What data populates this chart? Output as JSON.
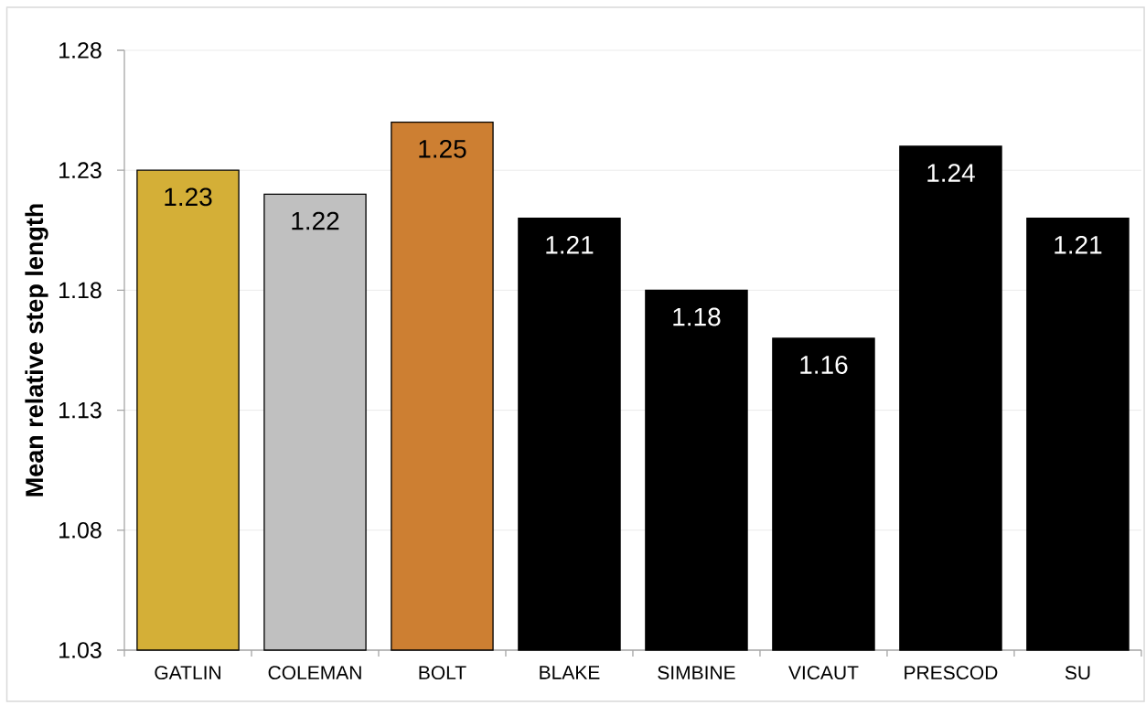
{
  "chart_data": {
    "type": "bar",
    "ylabel": "Mean relative step length",
    "categories": [
      "GATLIN",
      "COLEMAN",
      "BOLT",
      "BLAKE",
      "SIMBINE",
      "VICAUT",
      "PRESCOD",
      "SU"
    ],
    "values": [
      1.23,
      1.22,
      1.25,
      1.21,
      1.18,
      1.16,
      1.24,
      1.21
    ],
    "colors": [
      "#d4af37",
      "#c0c0c0",
      "#cd7f32",
      "#000000",
      "#000000",
      "#000000",
      "#000000",
      "#000000"
    ],
    "ylim": [
      1.03,
      1.28
    ],
    "yticks": [
      1.03,
      1.08,
      1.13,
      1.18,
      1.23,
      1.28
    ],
    "grid": "y",
    "data_labels": true
  }
}
